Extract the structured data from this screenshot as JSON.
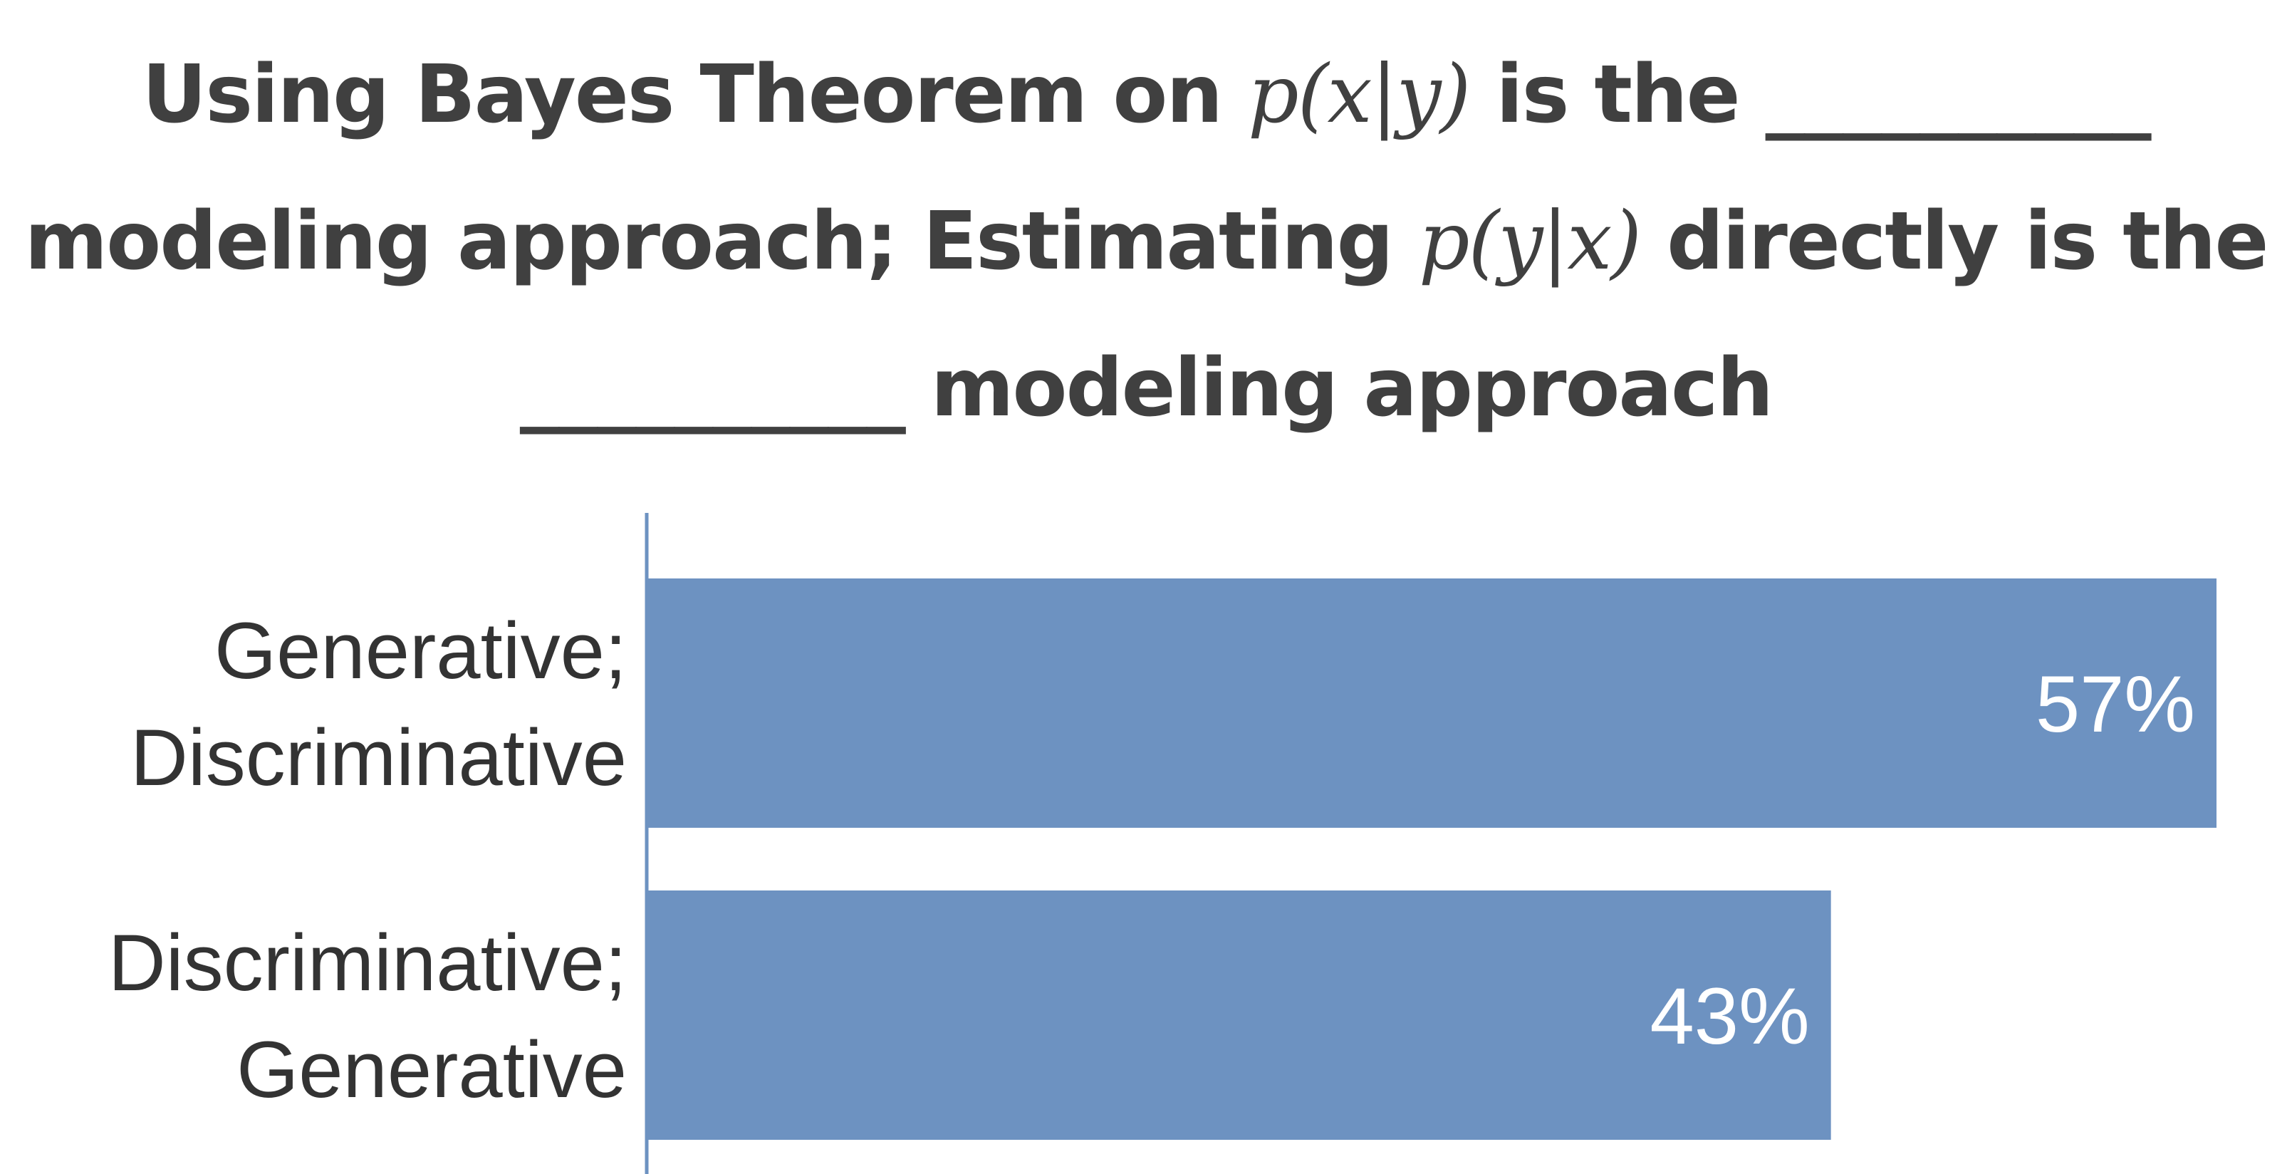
{
  "title": {
    "line1_a": "Using Bayes Theorem on ",
    "line1_math": "p(x|y)",
    "line1_b": " is the __________",
    "line2_a": "modeling approach; Estimating ",
    "line2_math": "p(y|x)",
    "line2_b": " directly is the",
    "line3": "__________ modeling approach"
  },
  "chart_data": {
    "type": "bar",
    "orientation": "horizontal",
    "categories": [
      [
        "Generative;",
        "Discriminative"
      ],
      [
        "Discriminative;",
        "Generative"
      ]
    ],
    "values": [
      57,
      43
    ],
    "value_labels": [
      "57%",
      "43%"
    ],
    "unit": "%",
    "xlim": [
      0,
      57
    ],
    "bar_color": "#6d92c1",
    "axis_color": "#6d92c1",
    "grid": false,
    "legend": "none"
  }
}
